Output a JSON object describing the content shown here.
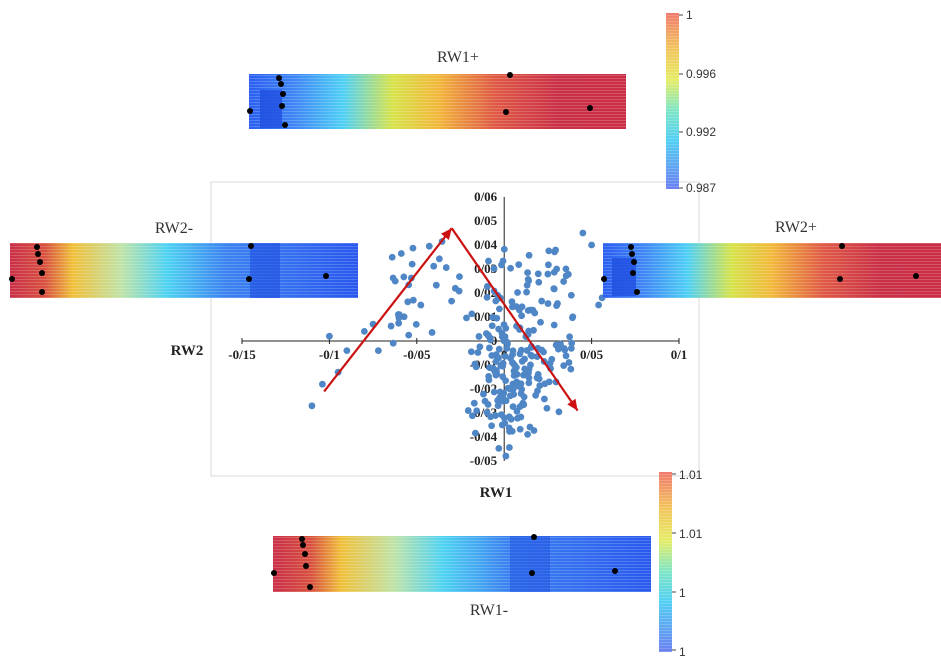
{
  "scatter": {
    "type": "scatter",
    "xlabel": "RW1",
    "ylabel": "RW2",
    "x_ticks": [
      "-0/15",
      "-0/1",
      "-0/05",
      "0",
      "0/05",
      "0/1"
    ],
    "x_tick_values": [
      -0.15,
      -0.1,
      -0.05,
      0,
      0.05,
      0.1
    ],
    "y_ticks": [
      "0/06",
      "0/05",
      "0/04",
      "0/03",
      "0/02",
      "0/01",
      "0",
      "-0/01",
      "-0/02",
      "-0/03",
      "-0/04",
      "-0/05"
    ],
    "y_tick_values": [
      0.06,
      0.05,
      0.04,
      0.03,
      0.02,
      0.01,
      0,
      -0.01,
      -0.02,
      -0.03,
      -0.04,
      -0.05
    ],
    "xlim": [
      -0.15,
      0.1
    ],
    "ylim": [
      -0.05,
      0.06
    ],
    "point_color": "#4f86c6",
    "arrow_color": "#cc1111",
    "arrows": [
      {
        "from": [
          -0.103,
          -0.021
        ],
        "to": [
          -0.03,
          0.047
        ]
      },
      {
        "from": [
          -0.03,
          0.047
        ],
        "to": [
          0.042,
          -0.029
        ]
      }
    ]
  },
  "heatmaps": [
    {
      "label": "RW1+",
      "direction": "blue-to-red"
    },
    {
      "label": "RW2-",
      "direction": "red-to-blue"
    },
    {
      "label": "RW2+",
      "direction": "blue-to-red"
    },
    {
      "label": "RW1-",
      "direction": "red-to-blue"
    }
  ],
  "colorbars": [
    {
      "ticks": [
        "1",
        "0.996",
        "0.992",
        "0.987"
      ]
    },
    {
      "ticks": [
        "1.01",
        "1.01",
        "1",
        "1"
      ]
    }
  ]
}
